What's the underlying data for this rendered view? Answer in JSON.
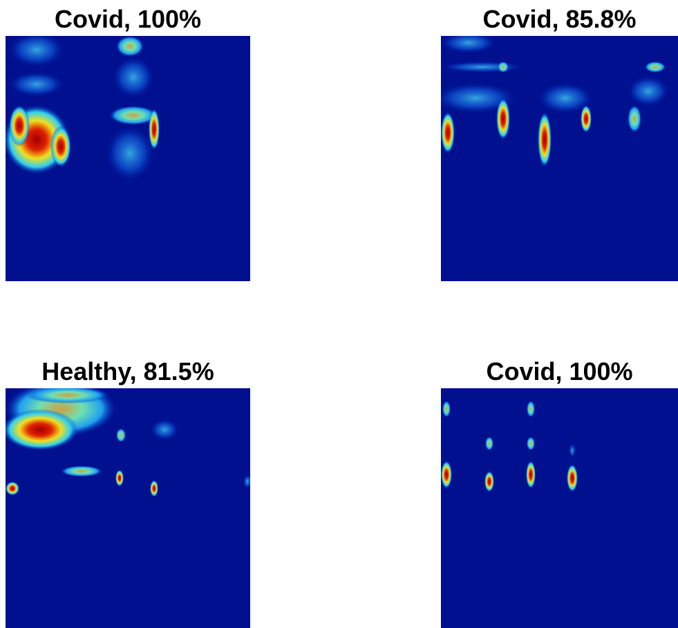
{
  "panels": [
    {
      "title": "Covid, 100%"
    },
    {
      "title": "Covid, 85.8%"
    },
    {
      "title": "Healthy, 81.5%"
    },
    {
      "title": "Covid, 100%"
    }
  ]
}
